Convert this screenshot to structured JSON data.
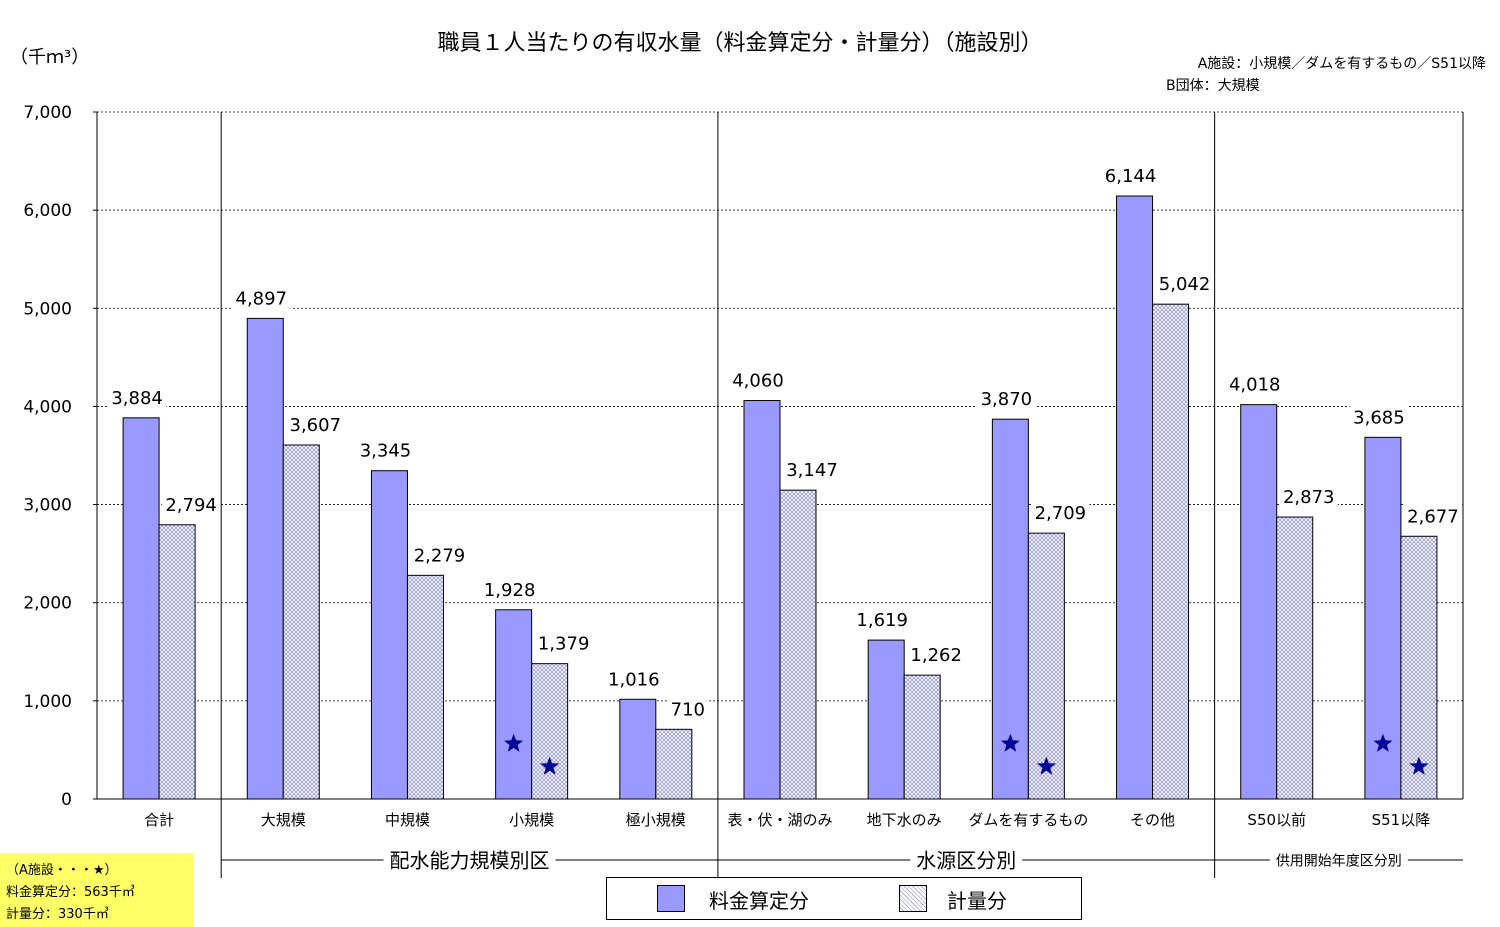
{
  "chart_data": {
    "type": "bar",
    "title": "職員１人当たりの有収水量（料金算定分・計量分）（施設別）",
    "unit_label": "（千ｍ³）",
    "notes_top_right": [
      "A施設：小規模／ダムを有するもの／S51以降",
      "B団体：大規模"
    ],
    "ylim": [
      0,
      7000
    ],
    "yticks": [
      "0",
      "1,000",
      "2,000",
      "3,000",
      "4,000",
      "5,000",
      "6,000",
      "7,000"
    ],
    "grid": true,
    "categories": [
      "合計",
      "大規模",
      "中規模",
      "小規模",
      "極小規模",
      "表・伏・湖のみ",
      "地下水のみ",
      "ダムを有するもの",
      "その他",
      "S50以前",
      "S51以降"
    ],
    "series": [
      {
        "name": "料金算定分",
        "color": "#9999ff",
        "values": [
          3884,
          4897,
          3345,
          1928,
          1016,
          4060,
          1619,
          3870,
          6144,
          4018,
          3685
        ],
        "labels": [
          "3,884",
          "4,897",
          "3,345",
          "1,928",
          "1,016",
          "4,060",
          "1,619",
          "3,870",
          "6,144",
          "4,018",
          "3,685"
        ]
      },
      {
        "name": "計量分",
        "color": "#ccccff",
        "values": [
          2794,
          3607,
          2279,
          1379,
          710,
          3147,
          1262,
          2709,
          5042,
          2873,
          2677
        ],
        "labels": [
          "2,794",
          "3,607",
          "2,279",
          "1,379",
          "710",
          "3,147",
          "1,262",
          "2,709",
          "5,042",
          "2,873",
          "2,677"
        ]
      }
    ],
    "group_labels": [
      "配水能力規模別区",
      "水源区分別",
      "供用開始年度区分別"
    ],
    "star_categories": [
      3,
      7,
      10
    ],
    "star_values": {
      "料金算定分": 563,
      "計量分": 330
    },
    "star_color": "#000099",
    "note_box": [
      "（A施設・・・★）",
      "料金算定分：563千㎥",
      "計量分：330千㎥"
    ],
    "legend": {
      "placement": "bottom-center",
      "entries": [
        "料金算定分",
        "計量分"
      ]
    }
  }
}
